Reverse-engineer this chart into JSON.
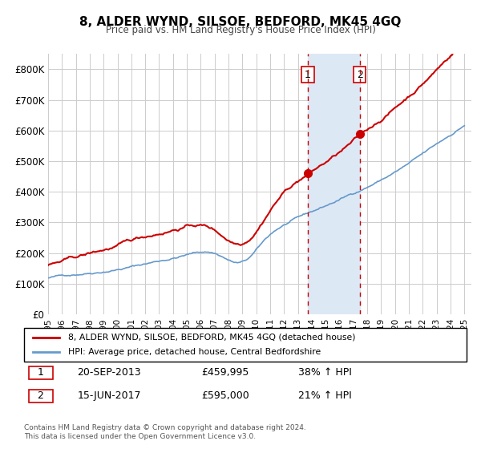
{
  "title": "8, ALDER WYND, SILSOE, BEDFORD, MK45 4GQ",
  "subtitle": "Price paid vs. HM Land Registry's House Price Index (HPI)",
  "xlim": [
    1995.0,
    2025.5
  ],
  "ylim": [
    0,
    850000
  ],
  "yticks": [
    0,
    100000,
    200000,
    300000,
    400000,
    500000,
    600000,
    700000,
    800000
  ],
  "ytick_labels": [
    "£0",
    "£100K",
    "£200K",
    "£300K",
    "£400K",
    "£500K",
    "£600K",
    "£700K",
    "£800K"
  ],
  "sale1_date": 2013.72,
  "sale1_price": 459995,
  "sale1_label": "1",
  "sale2_date": 2017.45,
  "sale2_price": 595000,
  "sale2_label": "2",
  "shaded_region_start": 2013.72,
  "shaded_region_end": 2017.45,
  "legend_line1": "8, ALDER WYND, SILSOE, BEDFORD, MK45 4GQ (detached house)",
  "legend_line2": "HPI: Average price, detached house, Central Bedfordshire",
  "table_row1_num": "1",
  "table_row1_date": "20-SEP-2013",
  "table_row1_price": "£459,995",
  "table_row1_hpi": "38% ↑ HPI",
  "table_row2_num": "2",
  "table_row2_date": "15-JUN-2017",
  "table_row2_price": "£595,000",
  "table_row2_hpi": "21% ↑ HPI",
  "footer": "Contains HM Land Registry data © Crown copyright and database right 2024.\nThis data is licensed under the Open Government Licence v3.0.",
  "house_color": "#cc0000",
  "hpi_color": "#6699cc",
  "shaded_color": "#dde8f5",
  "marker_color": "#cc0000",
  "dashed_line_color": "#cc0000",
  "background_color": "#ffffff",
  "grid_color": "#cccccc"
}
